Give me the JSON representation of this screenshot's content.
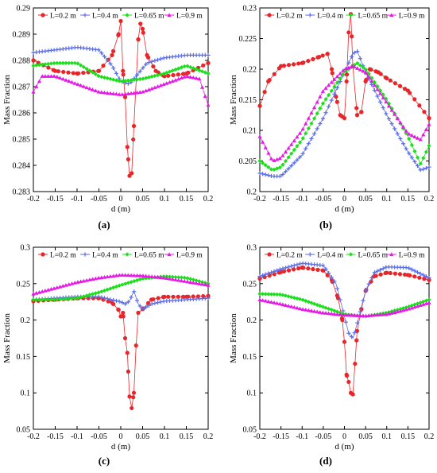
{
  "figure": {
    "panels_caption": [
      "(a)",
      "(b)",
      "(c)",
      "(d)"
    ]
  },
  "colors": {
    "L=0.2 m": "#e8262a",
    "L=0.4 m": "#5b6ee8",
    "L=0.65 m": "#19e019",
    "L=0.9 m": "#e619e6"
  },
  "markers": {
    "L=0.2 m": "circle",
    "L=0.4 m": "plus",
    "L=0.65 m": "diamond",
    "L=0.9 m": "triangle"
  },
  "chart_data": [
    {
      "type": "line",
      "caption": "(a)",
      "xlabel": "d (m)",
      "ylabel": "Mass Fraction",
      "xlim": [
        -0.2,
        0.2
      ],
      "ylim": [
        0.283,
        0.29
      ],
      "xticks": [
        -0.2,
        -0.15,
        -0.1,
        -0.05,
        0,
        0.05,
        0.1,
        0.15,
        0.2
      ],
      "xtick_labels": [
        "-0.2",
        "-0.15",
        "-0.1",
        "-0.05",
        "0",
        "0.05",
        "0.1",
        "0.15",
        "0.2"
      ],
      "yticks": [
        0.283,
        0.284,
        0.285,
        0.286,
        0.287,
        0.288,
        0.289,
        0.29
      ],
      "ytick_labels": [
        "0.283",
        "0.284",
        "0.285",
        "0.286",
        "0.287",
        "0.288",
        "0.289",
        "0.29"
      ],
      "legend": "top",
      "series": [
        {
          "name": "L=0.2 m",
          "x": [
            -0.2,
            -0.15,
            -0.1,
            -0.05,
            -0.02,
            -0.005,
            0,
            0.005,
            0.01,
            0.015,
            0.02,
            0.025,
            0.03,
            0.04,
            0.045,
            0.05,
            0.06,
            0.08,
            0.1,
            0.15,
            0.2
          ],
          "y": [
            0.288,
            0.2876,
            0.2875,
            0.2876,
            0.2882,
            0.289,
            0.2895,
            0.2876,
            0.2866,
            0.2847,
            0.2836,
            0.2837,
            0.2855,
            0.2888,
            0.2894,
            0.2892,
            0.2882,
            0.2876,
            0.2874,
            0.2875,
            0.2879
          ]
        },
        {
          "name": "L=0.4 m",
          "x": [
            -0.2,
            -0.15,
            -0.1,
            -0.05,
            -0.02,
            0,
            0.02,
            0.04,
            0.06,
            0.1,
            0.15,
            0.2
          ],
          "y": [
            0.2883,
            0.2884,
            0.2885,
            0.2884,
            0.2878,
            0.2872,
            0.2871,
            0.2875,
            0.2879,
            0.2881,
            0.2882,
            0.2882
          ]
        },
        {
          "name": "L=0.65 m",
          "x": [
            -0.2,
            -0.15,
            -0.1,
            -0.05,
            0,
            0.05,
            0.1,
            0.15,
            0.2
          ],
          "y": [
            0.2878,
            0.2879,
            0.2879,
            0.2874,
            0.2872,
            0.2873,
            0.2875,
            0.2878,
            0.2875
          ]
        },
        {
          "name": "L=0.9 m",
          "x": [
            -0.2,
            -0.18,
            -0.15,
            -0.1,
            -0.05,
            0,
            0.05,
            0.1,
            0.15,
            0.18,
            0.2
          ],
          "y": [
            0.2868,
            0.2874,
            0.2874,
            0.2871,
            0.2868,
            0.2867,
            0.2868,
            0.2871,
            0.2874,
            0.2873,
            0.2863
          ]
        }
      ]
    },
    {
      "type": "line",
      "caption": "(b)",
      "xlabel": "d (m)",
      "ylabel": "Mass Fraction",
      "xlim": [
        -0.2,
        0.2
      ],
      "ylim": [
        0.2,
        0.23
      ],
      "xticks": [
        -0.2,
        -0.15,
        -0.1,
        -0.05,
        0,
        0.05,
        0.1,
        0.15,
        0.2
      ],
      "xtick_labels": [
        "-0.2",
        "-0.15",
        "-0.1",
        "-0.05",
        "0",
        "0.05",
        "0.1",
        "0.15",
        "0.2"
      ],
      "yticks": [
        0.2,
        0.205,
        0.21,
        0.215,
        0.22,
        0.225,
        0.23
      ],
      "ytick_labels": [
        "0.2",
        "0.205",
        "0.21",
        "0.215",
        "0.22",
        "0.225",
        "0.23"
      ],
      "legend": "top",
      "series": [
        {
          "name": "L=0.2 m",
          "x": [
            -0.2,
            -0.18,
            -0.15,
            -0.1,
            -0.06,
            -0.04,
            -0.03,
            -0.02,
            -0.01,
            0,
            0.005,
            0.01,
            0.015,
            0.02,
            0.03,
            0.04,
            0.05,
            0.06,
            0.08,
            0.1,
            0.15,
            0.2
          ],
          "y": [
            0.214,
            0.218,
            0.2205,
            0.221,
            0.222,
            0.2225,
            0.22,
            0.2155,
            0.2125,
            0.212,
            0.218,
            0.226,
            0.229,
            0.2205,
            0.2125,
            0.213,
            0.218,
            0.22,
            0.2195,
            0.2185,
            0.2165,
            0.212
          ]
        },
        {
          "name": "L=0.4 m",
          "x": [
            -0.2,
            -0.17,
            -0.15,
            -0.1,
            -0.05,
            0,
            0.02,
            0.03,
            0.05,
            0.1,
            0.15,
            0.18,
            0.2
          ],
          "y": [
            0.203,
            0.2025,
            0.2025,
            0.206,
            0.212,
            0.2195,
            0.2225,
            0.223,
            0.2195,
            0.2125,
            0.2065,
            0.2035,
            0.204
          ]
        },
        {
          "name": "L=0.65 m",
          "x": [
            -0.2,
            -0.17,
            -0.15,
            -0.1,
            -0.05,
            0,
            0.03,
            0.05,
            0.1,
            0.15,
            0.18,
            0.2
          ],
          "y": [
            0.205,
            0.2035,
            0.204,
            0.2085,
            0.2145,
            0.2195,
            0.221,
            0.22,
            0.215,
            0.209,
            0.2045,
            0.2075
          ]
        },
        {
          "name": "L=0.9 m",
          "x": [
            -0.2,
            -0.17,
            -0.15,
            -0.1,
            -0.05,
            0,
            0.02,
            0.05,
            0.1,
            0.15,
            0.18,
            0.2
          ],
          "y": [
            0.209,
            0.205,
            0.2055,
            0.21,
            0.2165,
            0.22,
            0.2205,
            0.2195,
            0.2145,
            0.2095,
            0.2085,
            0.211
          ]
        }
      ]
    },
    {
      "type": "line",
      "caption": "(c)",
      "xlabel": "d (m)",
      "ylabel": "Mass Fraction",
      "xlim": [
        -0.2,
        0.2
      ],
      "ylim": [
        0.05,
        0.3
      ],
      "xticks": [
        -0.2,
        -0.15,
        -0.1,
        -0.05,
        0,
        0.05,
        0.1,
        0.15,
        0.2
      ],
      "xtick_labels": [
        "-0.2",
        "-0.15",
        "-0.1",
        "-0.05",
        "0",
        "0.05",
        "0.1",
        "0.15",
        "0.2"
      ],
      "yticks": [
        0.05,
        0.1,
        0.15,
        0.2,
        0.25,
        0.3
      ],
      "ytick_labels": [
        "0.05",
        "0.1",
        "0.15",
        "0.2",
        "0.25",
        "0.3"
      ],
      "legend": "top",
      "series": [
        {
          "name": "L=0.2 m",
          "x": [
            -0.2,
            -0.15,
            -0.1,
            -0.05,
            -0.02,
            -0.005,
            0,
            0.005,
            0.01,
            0.015,
            0.02,
            0.025,
            0.03,
            0.035,
            0.04,
            0.05,
            0.07,
            0.1,
            0.15,
            0.2
          ],
          "y": [
            0.226,
            0.228,
            0.23,
            0.23,
            0.224,
            0.214,
            0.205,
            0.21,
            0.175,
            0.155,
            0.095,
            0.079,
            0.1,
            0.165,
            0.21,
            0.215,
            0.228,
            0.232,
            0.232,
            0.233
          ]
        },
        {
          "name": "L=0.4 m",
          "x": [
            -0.2,
            -0.15,
            -0.1,
            -0.05,
            0,
            0.01,
            0.02,
            0.03,
            0.04,
            0.05,
            0.07,
            0.1,
            0.15,
            0.2
          ],
          "y": [
            0.228,
            0.23,
            0.232,
            0.232,
            0.225,
            0.222,
            0.226,
            0.24,
            0.222,
            0.215,
            0.222,
            0.226,
            0.228,
            0.23
          ]
        },
        {
          "name": "L=0.65 m",
          "x": [
            -0.2,
            -0.15,
            -0.1,
            -0.05,
            0,
            0.05,
            0.1,
            0.15,
            0.2
          ],
          "y": [
            0.228,
            0.228,
            0.23,
            0.238,
            0.248,
            0.257,
            0.26,
            0.258,
            0.25
          ]
        },
        {
          "name": "L=0.9 m",
          "x": [
            -0.2,
            -0.15,
            -0.1,
            -0.05,
            0,
            0.05,
            0.1,
            0.15,
            0.2
          ],
          "y": [
            0.236,
            0.244,
            0.252,
            0.258,
            0.262,
            0.261,
            0.258,
            0.253,
            0.248
          ]
        }
      ]
    },
    {
      "type": "line",
      "caption": "(d)",
      "xlabel": "d (m)",
      "ylabel": "Mass Fraction",
      "xlim": [
        -0.2,
        0.2
      ],
      "ylim": [
        0.05,
        0.3
      ],
      "xticks": [
        -0.2,
        -0.15,
        -0.1,
        -0.05,
        0,
        0.05,
        0.1,
        0.15,
        0.2
      ],
      "xtick_labels": [
        "-0.2",
        "-0.15",
        "-0.1",
        "-0.05",
        "0",
        "0.05",
        "0.1",
        "0.15",
        "0.2"
      ],
      "yticks": [
        0.05,
        0.1,
        0.15,
        0.2,
        0.25,
        0.3
      ],
      "ytick_labels": [
        "0.05",
        "0.1",
        "0.15",
        "0.2",
        "0.25",
        "0.3"
      ],
      "legend": "top",
      "series": [
        {
          "name": "L=0.2 m",
          "x": [
            -0.2,
            -0.15,
            -0.1,
            -0.05,
            -0.03,
            -0.015,
            -0.005,
            0,
            0.005,
            0.01,
            0.015,
            0.02,
            0.025,
            0.03,
            0.04,
            0.05,
            0.07,
            0.1,
            0.15,
            0.2
          ],
          "y": [
            0.257,
            0.266,
            0.272,
            0.268,
            0.255,
            0.23,
            0.2,
            0.17,
            0.125,
            0.115,
            0.1,
            0.098,
            0.14,
            0.185,
            0.215,
            0.24,
            0.26,
            0.265,
            0.262,
            0.255
          ]
        },
        {
          "name": "L=0.4 m",
          "x": [
            -0.2,
            -0.15,
            -0.1,
            -0.05,
            -0.02,
            0,
            0.01,
            0.02,
            0.03,
            0.05,
            0.07,
            0.1,
            0.15,
            0.2
          ],
          "y": [
            0.26,
            0.27,
            0.278,
            0.275,
            0.25,
            0.205,
            0.182,
            0.175,
            0.195,
            0.24,
            0.265,
            0.273,
            0.272,
            0.258
          ]
        },
        {
          "name": "L=0.65 m",
          "x": [
            -0.2,
            -0.15,
            -0.1,
            -0.05,
            0,
            0.05,
            0.1,
            0.15,
            0.2
          ],
          "y": [
            0.236,
            0.235,
            0.228,
            0.218,
            0.208,
            0.205,
            0.21,
            0.218,
            0.228
          ]
        },
        {
          "name": "L=0.9 m",
          "x": [
            -0.2,
            -0.15,
            -0.1,
            -0.05,
            0,
            0.05,
            0.1,
            0.15,
            0.2
          ],
          "y": [
            0.228,
            0.222,
            0.215,
            0.21,
            0.207,
            0.206,
            0.208,
            0.215,
            0.224
          ]
        }
      ]
    }
  ]
}
